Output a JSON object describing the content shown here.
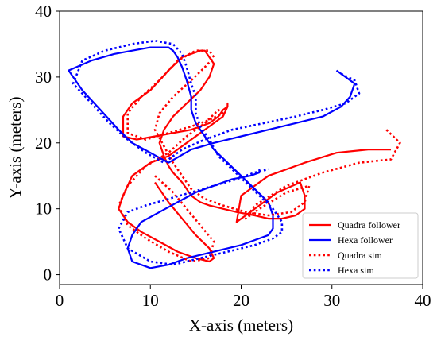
{
  "chart_data": {
    "type": "line",
    "title": "",
    "xlabel": "X-axis (meters)",
    "ylabel": "Y-axis (meters)",
    "xlim": [
      0,
      40
    ],
    "ylim": [
      -1.5,
      40
    ],
    "xticks": [
      0,
      10,
      20,
      30,
      40
    ],
    "yticks": [
      0,
      10,
      20,
      30,
      40
    ],
    "grid": false,
    "legend_position": "lower right",
    "series": [
      {
        "name": "Quadra follower",
        "color": "#ff0000",
        "style": "solid",
        "x": [
          36.5,
          34,
          30.5,
          27,
          23,
          20,
          19.5,
          20.5,
          22,
          24,
          26.5,
          27,
          27,
          26,
          24.5,
          23,
          21.5,
          19.5,
          18,
          16.5,
          15.5,
          14.5,
          14,
          13.5,
          12.5,
          12,
          11.5,
          11,
          11.5,
          12.5,
          14,
          15.5,
          16.5,
          17,
          16.5,
          16,
          15.5,
          13.5,
          12,
          10,
          8,
          7,
          7,
          8.5,
          10.5,
          12.5,
          14.5,
          16.5,
          17.5,
          18,
          18.5,
          18.5,
          18.5,
          18,
          17,
          15.5,
          14,
          12,
          10,
          8,
          7,
          6.5,
          7.5,
          9,
          11,
          13,
          15,
          16.5,
          17,
          16.5,
          15,
          13.5,
          12,
          10.5
        ],
        "y": [
          19,
          19,
          18.5,
          17,
          15,
          12,
          8,
          9,
          10.5,
          12.5,
          14,
          12,
          10,
          9,
          8.5,
          8.5,
          9,
          9.5,
          10,
          10.5,
          11,
          12,
          13,
          14,
          15.5,
          16.5,
          18,
          20,
          22,
          24,
          26,
          28,
          30,
          32,
          33,
          34,
          34,
          33,
          31,
          28,
          26,
          24,
          21,
          20.5,
          21,
          21.5,
          22,
          23,
          24,
          25,
          25.5,
          26,
          25.5,
          24,
          23,
          21.5,
          20,
          18,
          17,
          15,
          12,
          10,
          8,
          6.5,
          5,
          3.5,
          2.5,
          2,
          2.5,
          4,
          6,
          8.5,
          11,
          14
        ]
      },
      {
        "name": "Hexa follower",
        "color": "#0000ff",
        "style": "solid",
        "x": [
          30.5,
          31.5,
          32.5,
          32,
          31,
          29,
          26,
          23,
          20,
          17,
          14.5,
          12,
          10,
          8,
          6.5,
          4.5,
          2.5,
          1,
          3.5,
          6,
          8,
          10,
          12,
          12.5,
          13,
          13.5,
          14,
          14.5,
          14.5,
          15,
          16,
          17,
          18.5,
          20,
          21.5,
          23,
          23.5,
          23.5,
          23,
          22,
          20,
          17,
          14,
          12,
          10,
          8,
          7.5,
          8,
          9,
          11,
          13,
          15,
          17,
          19,
          21,
          22,
          22
        ],
        "y": [
          31,
          30,
          29,
          27,
          25.5,
          24,
          23,
          22,
          21,
          20,
          19,
          17,
          18.5,
          20,
          22,
          25,
          28,
          31,
          32.5,
          33.5,
          34,
          34.5,
          34.5,
          34,
          33,
          31.5,
          29.5,
          27,
          25,
          23,
          21,
          19,
          17,
          15,
          13,
          11,
          9,
          7,
          6,
          5.5,
          4.5,
          3.5,
          2.5,
          1.5,
          1,
          2,
          4,
          6,
          8,
          9.5,
          11,
          12.5,
          13.5,
          14.5,
          15,
          15.5,
          16
        ]
      },
      {
        "name": "Quadra sim",
        "color": "#ff0000",
        "style": "dotted",
        "x": [
          36,
          37.5,
          36.5,
          33,
          29,
          25,
          21.5,
          20.5,
          22,
          25,
          27.5,
          27,
          25.5,
          23,
          20.5,
          18,
          16,
          14.5,
          13.5,
          12.5,
          11.5,
          10.5,
          11,
          12.5,
          14.5,
          16,
          17,
          16.5,
          15,
          13,
          11,
          9,
          7.5,
          7.5,
          9.5,
          12,
          14.5,
          16.5,
          18,
          17.5,
          16,
          14,
          12,
          9.5,
          7.5,
          6.5,
          7.5,
          9.5,
          12,
          14.5,
          16.5,
          17,
          15.5,
          14,
          12.5,
          10.5
        ],
        "y": [
          22,
          20,
          17.5,
          17,
          15.5,
          13.5,
          10.5,
          8.5,
          10,
          12.5,
          13.5,
          11,
          9.5,
          9,
          9.5,
          10.5,
          11.5,
          13,
          15,
          17,
          19.5,
          22,
          24.5,
          27,
          29.5,
          31.5,
          33,
          34,
          34,
          32.5,
          29.5,
          27,
          24.5,
          21.5,
          20.5,
          21.5,
          22.5,
          23.5,
          24.5,
          25,
          23,
          21,
          18.5,
          16.5,
          13.5,
          10.5,
          7.5,
          5.5,
          3.5,
          2,
          2.5,
          5,
          7.5,
          10,
          12.5,
          15
        ]
      },
      {
        "name": "Hexa sim",
        "color": "#0000ff",
        "style": "dotted",
        "x": [
          31,
          32.5,
          33,
          31.5,
          29,
          26,
          22.5,
          19,
          16,
          13.5,
          11.5,
          9.5,
          7.5,
          5.5,
          3.5,
          1.5,
          2.5,
          5,
          8,
          10.5,
          12.5,
          13.5,
          14,
          14.5,
          15,
          15,
          15.5,
          16.5,
          17.5,
          19,
          20.5,
          22,
          23.5,
          24.5,
          24.5,
          23.5,
          21.5,
          18.5,
          15.5,
          12.5,
          10,
          7.5,
          6.5,
          7.5,
          9.5,
          12,
          14.5,
          17,
          19.5,
          21.5,
          23
        ],
        "y": [
          30.5,
          29.5,
          27.5,
          26,
          25,
          24,
          23,
          22,
          20.5,
          19,
          17,
          18.5,
          20.5,
          23,
          26,
          29,
          32.5,
          34,
          35,
          35.5,
          35,
          33.5,
          31.5,
          29,
          27,
          24.5,
          22.5,
          20.5,
          18,
          16,
          14,
          12,
          10,
          8,
          6.5,
          5.5,
          4.5,
          3.5,
          2.5,
          1.5,
          2,
          4,
          7,
          9.5,
          10.5,
          11.5,
          12.5,
          13.5,
          14.5,
          15.5,
          16
        ]
      }
    ]
  }
}
